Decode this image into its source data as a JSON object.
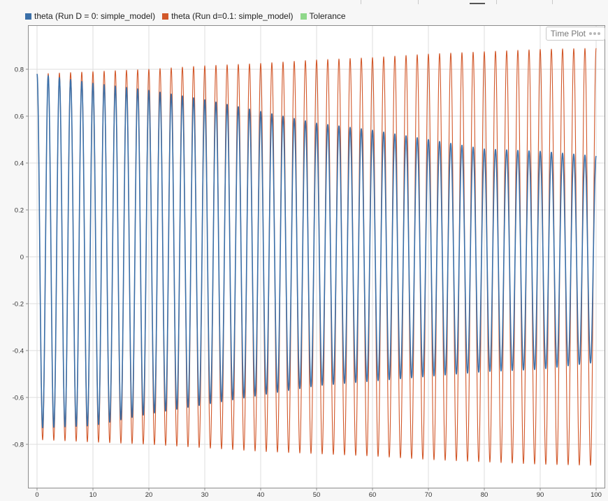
{
  "legend": [
    {
      "label": "theta (Run D = 0: simple_model)",
      "color": "#3a6fa8"
    },
    {
      "label": "theta (Run d=0.1: simple_model)",
      "color": "#d2582a"
    },
    {
      "label": "Tolerance",
      "color": "#8fd88a"
    }
  ],
  "plot_badge": {
    "label": "Time Plot",
    "icon": "more-options-icon"
  },
  "chart_data": {
    "type": "line",
    "xlabel": "",
    "ylabel": "",
    "xlim": [
      -1.5,
      101.5
    ],
    "ylim": [
      -0.985,
      0.985
    ],
    "xticks": [
      0,
      10,
      20,
      30,
      40,
      50,
      60,
      70,
      80,
      90,
      100
    ],
    "yticks": [
      -0.8,
      -0.6,
      -0.4,
      -0.2,
      0,
      0.2,
      0.4,
      0.6,
      0.8
    ],
    "grid": true,
    "legend_position": "top-left",
    "x_range": [
      0,
      100
    ],
    "series": [
      {
        "name": "theta (Run D = 0: simple_model)",
        "color": "#3a6fa8",
        "kind": "damped oscillation",
        "initial_value": 0.78,
        "period": 2.0,
        "peak_envelope": {
          "x": [
            0,
            10,
            20,
            30,
            40,
            50,
            60,
            70,
            80,
            90,
            100
          ],
          "y": [
            0.78,
            0.74,
            0.71,
            0.67,
            0.62,
            0.57,
            0.54,
            0.5,
            0.46,
            0.45,
            0.43
          ]
        },
        "trough_envelope": {
          "x": [
            0,
            10,
            20,
            30,
            40,
            50,
            60,
            70,
            80,
            90,
            100
          ],
          "y": [
            -0.73,
            -0.72,
            -0.67,
            -0.63,
            -0.59,
            -0.55,
            -0.53,
            -0.51,
            -0.49,
            -0.48,
            -0.45
          ]
        },
        "end_value": -0.43
      },
      {
        "name": "theta (Run d=0.1: simple_model)",
        "color": "#d2582a",
        "kind": "growing oscillation",
        "initial_value": 0.78,
        "period": 2.0,
        "peak_envelope": {
          "x": [
            0,
            10,
            20,
            30,
            40,
            50,
            60,
            70,
            80,
            90,
            100
          ],
          "y": [
            0.78,
            0.79,
            0.8,
            0.815,
            0.825,
            0.84,
            0.85,
            0.865,
            0.875,
            0.885,
            0.89
          ]
        },
        "trough_envelope": {
          "x": [
            0,
            10,
            20,
            30,
            40,
            50,
            60,
            70,
            80,
            90,
            100
          ],
          "y": [
            -0.78,
            -0.79,
            -0.8,
            -0.815,
            -0.83,
            -0.84,
            -0.85,
            -0.865,
            -0.875,
            -0.885,
            -0.89
          ]
        },
        "end_value": -0.64
      },
      {
        "name": "Tolerance",
        "color": "#8fd88a",
        "kind": "legend only"
      }
    ]
  }
}
